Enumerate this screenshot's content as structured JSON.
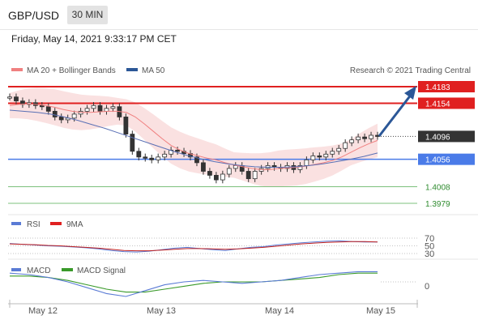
{
  "header": {
    "pair": "GBP/USD",
    "timeframe": "30 MIN",
    "datetime": "Friday, May 14, 2021 9:33:17 PM CET"
  },
  "legend": {
    "ma20": "MA 20 + Bollinger Bands",
    "ma50": "MA 50",
    "copyright": "Research © 2021 Trading Central",
    "rsi": "RSI",
    "rsi_ma": "9MA",
    "macd": "MACD",
    "macd_signal": "MACD Signal"
  },
  "colors": {
    "resistance": "#e02020",
    "support": "#4a7be8",
    "last": "#333333",
    "target": "#2e8b2e",
    "arrow": "#2b5797",
    "bollinger": "#f6c8c8",
    "ma20": "#f08080",
    "ma50": "#5a70b5"
  },
  "chart_data": {
    "type": "line",
    "title": "GBP/USD",
    "x_ticks": [
      "May 12",
      "May 13",
      "May 14",
      "May 15"
    ],
    "price_levels": [
      {
        "label": "1.4183",
        "value": 1.4183,
        "kind": "resistance"
      },
      {
        "label": "1.4154",
        "value": 1.4154,
        "kind": "resistance"
      },
      {
        "label": "1.4096",
        "value": 1.4096,
        "kind": "last"
      },
      {
        "label": "1.4056",
        "value": 1.4056,
        "kind": "support"
      },
      {
        "label": "1.4008",
        "value": 1.4008,
        "kind": "target"
      },
      {
        "label": "1.3979",
        "value": 1.3979,
        "kind": "target"
      }
    ],
    "price_series": [
      1.4165,
      1.4158,
      1.4152,
      1.4155,
      1.415,
      1.4148,
      1.414,
      1.413,
      1.4125,
      1.4128,
      1.4135,
      1.414,
      1.4145,
      1.415,
      1.414,
      1.4145,
      1.4148,
      1.413,
      1.41,
      1.407,
      1.406,
      1.4058,
      1.4055,
      1.406,
      1.4065,
      1.4072,
      1.407,
      1.4066,
      1.406,
      1.405,
      1.4035,
      1.4028,
      1.402,
      1.403,
      1.404,
      1.4045,
      1.4035,
      1.4022,
      1.4035,
      1.404,
      1.4045,
      1.4042,
      1.404,
      1.4045,
      1.4038,
      1.4045,
      1.4055,
      1.4062,
      1.406,
      1.4065,
      1.407,
      1.4075,
      1.4085,
      1.409,
      1.4095,
      1.4092,
      1.4098,
      1.4096
    ],
    "ma20_series": [
      1.415,
      1.4152,
      1.4153,
      1.4152,
      1.415,
      1.4147,
      1.4143,
      1.414,
      1.4138,
      1.4138,
      1.4139,
      1.414,
      1.414,
      1.4138,
      1.413,
      1.4118,
      1.4105,
      1.4092,
      1.408,
      1.4072,
      1.4066,
      1.4062,
      1.4058,
      1.4055,
      1.405,
      1.4046,
      1.4043,
      1.404,
      1.4038,
      1.4038,
      1.404,
      1.4041,
      1.4042,
      1.4044,
      1.4047,
      1.405,
      1.4054,
      1.406,
      1.4068,
      1.4076,
      1.4083,
      1.4089
    ],
    "ma50_series": [
      1.4142,
      1.414,
      1.4138,
      1.4135,
      1.413,
      1.4124,
      1.4117,
      1.411,
      1.4102,
      1.4094,
      1.4086,
      1.4078,
      1.407,
      1.4063,
      1.4057,
      1.4052,
      1.4048,
      1.4045,
      1.4043,
      1.4042,
      1.4042,
      1.4043,
      1.4045,
      1.4048,
      1.4052,
      1.4056,
      1.4061,
      1.4067
    ],
    "rsi_levels": [
      "70",
      "50",
      "30"
    ],
    "rsi_series": [
      56,
      54,
      52,
      50,
      49,
      47,
      45,
      42,
      38,
      35,
      34,
      36,
      40,
      44,
      46,
      43,
      40,
      38,
      42,
      46,
      48,
      52,
      55,
      58,
      60,
      62,
      63,
      61,
      60,
      60
    ],
    "rsi_ma_series": [
      55,
      54,
      53,
      51,
      50,
      48,
      46,
      44,
      41,
      38,
      37,
      37,
      39,
      41,
      43,
      43,
      42,
      41,
      42,
      44,
      46,
      49,
      52,
      55,
      57,
      59,
      60,
      61,
      61,
      60
    ],
    "macd_levels": [
      "0"
    ],
    "macd_series": [
      0.0006,
      0.0005,
      0.0003,
      0.0,
      -0.0004,
      -0.0008,
      -0.001,
      -0.0006,
      -0.0002,
      0.0,
      0.0001,
      0.0,
      -0.0001,
      0.0,
      0.0001,
      0.0003,
      0.0005,
      0.0006,
      0.0007,
      0.0007
    ],
    "macd_signal_series": [
      0.0004,
      0.0004,
      0.0003,
      0.0001,
      -0.0002,
      -0.0005,
      -0.0007,
      -0.0007,
      -0.0005,
      -0.0003,
      -0.0001,
      0.0,
      0.0,
      0.0,
      0.0001,
      0.0002,
      0.0003,
      0.0005,
      0.0006,
      0.0006
    ]
  }
}
